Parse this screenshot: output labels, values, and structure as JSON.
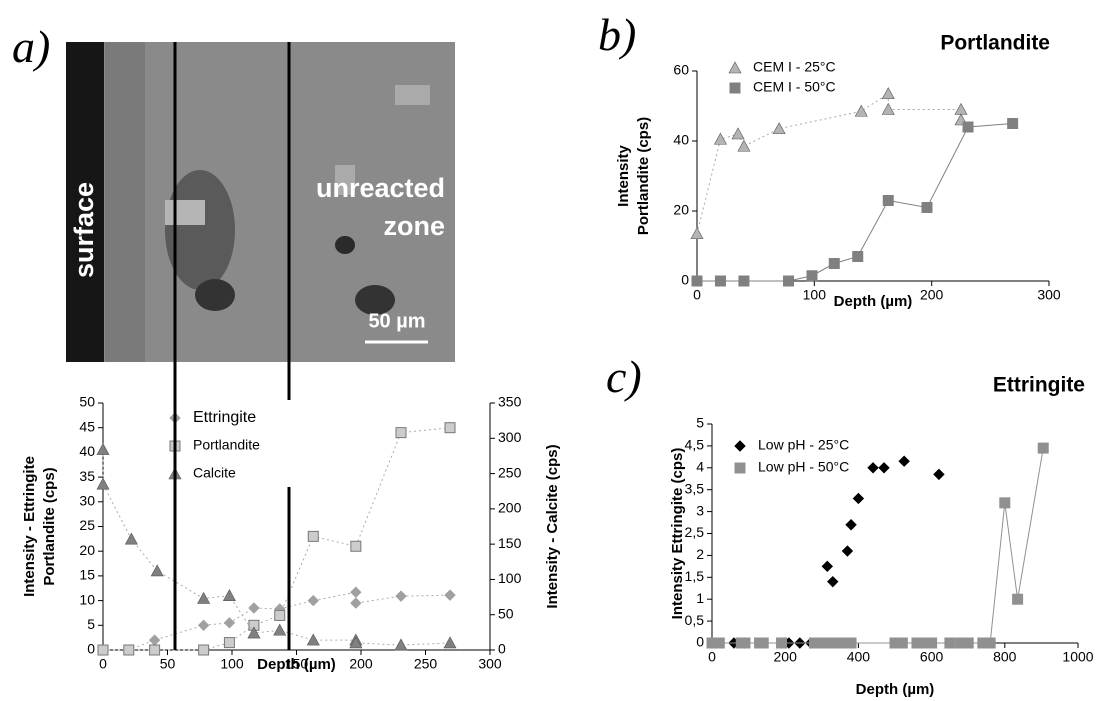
{
  "labels": {
    "panel_a": "a)",
    "panel_b": "b)",
    "panel_c": "c)",
    "surface": "surface",
    "unreacted_zone": [
      "unreacted",
      "zone"
    ],
    "scale_bar": "50 µm"
  },
  "chart_data": [
    {
      "type": "line",
      "xlabel": "Depth (µm)",
      "ylabel": [
        "Intensity - Ettringite",
        "Portlandite (cps)"
      ],
      "y2label": "Intensity - Calcite (cps)",
      "xlim": [
        0,
        300
      ],
      "xticks": [
        0,
        50,
        100,
        150,
        200,
        250,
        300
      ],
      "ylim": [
        0,
        50
      ],
      "yticks": [
        0,
        5,
        10,
        15,
        20,
        25,
        30,
        35,
        40,
        45,
        50
      ],
      "y2lim": [
        0,
        350
      ],
      "y2ticks": [
        0,
        50,
        100,
        150,
        200,
        250,
        300,
        350
      ],
      "legend": "top-left",
      "series": [
        {
          "name": "Ettringite",
          "color": "#a0a0a0",
          "marker": "diamond",
          "line": "dotted",
          "x": [
            0,
            20,
            40,
            78,
            98,
            117,
            137,
            163,
            196,
            196,
            231,
            269
          ],
          "values": [
            0,
            0,
            2,
            5,
            5.5,
            8.5,
            8.3,
            10,
            11.7,
            9.5,
            10.9,
            11.1
          ]
        },
        {
          "name": "Portlandite",
          "color": "#cccccc",
          "marker": "square",
          "line": "dotted",
          "x": [
            0,
            20,
            40,
            78,
            98,
            117,
            137,
            163,
            196,
            231,
            269
          ],
          "values": [
            0,
            0,
            0,
            0,
            1.5,
            5,
            7,
            23,
            21,
            44,
            45
          ]
        },
        {
          "name": "Calcite",
          "color": "#808080",
          "marker": "triangle",
          "line": "dotted",
          "axis": "y2",
          "x": [
            0,
            0,
            22,
            42,
            78,
            98,
            117,
            137,
            163,
            196,
            196,
            231,
            269
          ],
          "values": [
            284,
            235,
            157,
            112,
            73,
            77,
            24,
            28,
            14,
            14,
            10,
            7,
            10
          ]
        }
      ]
    },
    {
      "type": "line",
      "title": "Portlandite",
      "xlabel": "Depth (µm)",
      "ylabel": [
        "Intensity",
        "Portlandite (cps)"
      ],
      "xlim": [
        0,
        300
      ],
      "xticks": [
        0,
        100,
        200,
        300
      ],
      "ylim": [
        0,
        60
      ],
      "yticks": [
        0,
        20,
        40,
        60
      ],
      "legend": "top-left",
      "series": [
        {
          "name": "CEM I - 25°C",
          "color": "#b4b4b4",
          "marker": "triangle",
          "line": "dotted",
          "x": [
            0,
            20,
            35,
            40,
            70,
            140,
            163,
            163,
            225,
            225
          ],
          "values": [
            13.5,
            40.5,
            42,
            38.5,
            43.5,
            48.5,
            53.5,
            49,
            49,
            46
          ]
        },
        {
          "name": "CEM I - 50°C",
          "color": "#808080",
          "marker": "square",
          "line": "solid",
          "x": [
            0,
            20,
            40,
            78,
            98,
            117,
            137,
            163,
            196,
            231,
            269
          ],
          "values": [
            0,
            0,
            0,
            0,
            1.5,
            5,
            7,
            23,
            21,
            44,
            45
          ]
        }
      ]
    },
    {
      "type": "line",
      "title": "Ettringite",
      "xlabel": "Depth (µm)",
      "ylabel": [
        "Intensity Ettringite (cps)"
      ],
      "xlim": [
        0,
        1000
      ],
      "xticks": [
        0,
        200,
        400,
        600,
        800,
        1000
      ],
      "ylim": [
        0,
        5
      ],
      "yticks": [
        0,
        {
          "value": 0.5,
          "label": "0,5"
        },
        1,
        {
          "value": 1.5,
          "label": "1,5"
        },
        2,
        {
          "value": 2.5,
          "label": "2,5"
        },
        3,
        {
          "value": 3.5,
          "label": "3,5"
        },
        4,
        {
          "value": 4.5,
          "label": "4,5"
        },
        5
      ],
      "legend": "top-left",
      "series": [
        {
          "name": "Low pH - 25°C",
          "color": "#000000",
          "marker": "diamond",
          "line": "none",
          "x": [
            0,
            10,
            60,
            80,
            90,
            190,
            200,
            210,
            240,
            270,
            315,
            330,
            370,
            380,
            400,
            440,
            470,
            525,
            620
          ],
          "values": [
            0,
            0,
            0,
            0,
            0,
            0,
            0,
            0,
            0,
            0,
            1.75,
            1.4,
            2.1,
            2.7,
            3.3,
            4,
            4,
            4.15,
            3.85
          ]
        },
        {
          "name": "Low pH - 50°C",
          "color": "#909090",
          "marker": "square",
          "line": "solid",
          "x": [
            0,
            20,
            80,
            90,
            130,
            140,
            190,
            280,
            290,
            310,
            330,
            340,
            350,
            360,
            380,
            500,
            520,
            560,
            580,
            600,
            650,
            680,
            700,
            740,
            750,
            760,
            800,
            835,
            905
          ],
          "values": [
            0,
            0,
            0,
            0,
            0,
            0,
            0,
            0,
            0,
            0,
            0,
            0,
            0,
            0,
            0,
            0,
            0,
            0,
            0,
            0,
            0,
            0,
            0,
            0,
            0,
            0,
            3.2,
            1.0,
            4.45
          ]
        }
      ]
    }
  ]
}
